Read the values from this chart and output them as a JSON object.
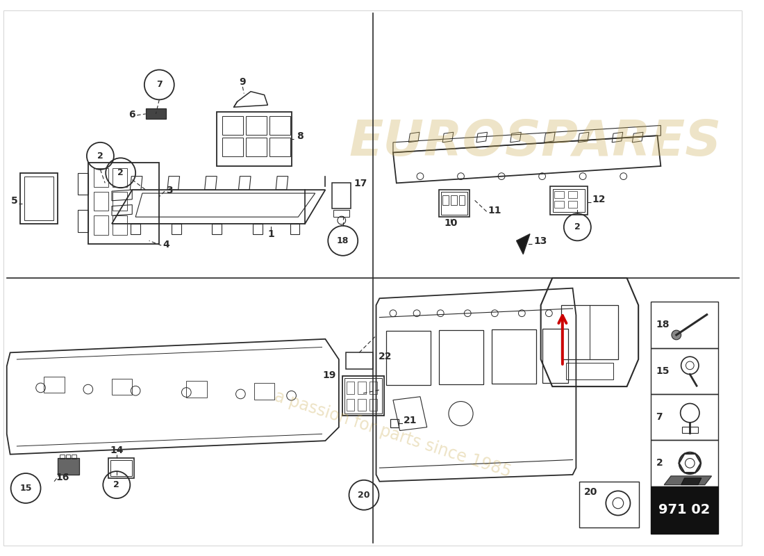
{
  "bg_color": "#ffffff",
  "line_color": "#2a2a2a",
  "watermark_text1": "EUROSPARES",
  "watermark_text2": "a passion for parts since 1985",
  "watermark_color": "#c8a84b",
  "diagram_code": "971 02"
}
